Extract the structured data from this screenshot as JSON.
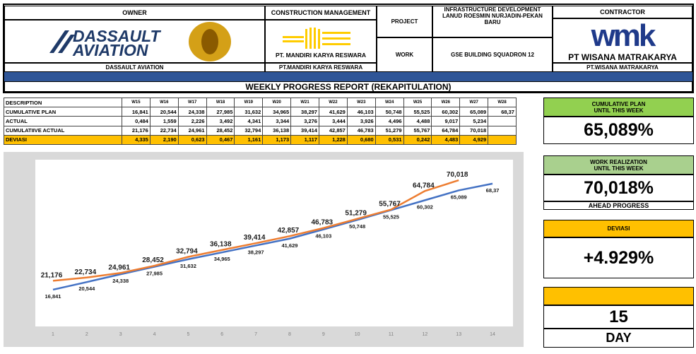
{
  "header": {
    "owner_label": "OWNER",
    "owner_logo_text": [
      "DASSAULT",
      "AVIATION"
    ],
    "owner_name": "DASSAULT AVIATION",
    "cm_label": "CONSTRUCTION MANAGEMENT",
    "cm_logo_text": "PT. MANDIRI KARYA RESWARA",
    "cm_name": "PT.MANDIRI KARYA RESWARA",
    "project_label": "PROJECT",
    "project_value": "INFRASTRUCTURE DEVELOPMENT LANUD ROESMIN NURJADIN-PEKAN BARU",
    "work_label": "WORK",
    "work_value": "GSE BUILDING SQUADRON 12",
    "contractor_label": "CONTRACTOR",
    "contractor_logo": "wmk",
    "contractor_logo_text": "PT WISANA MATRAKARYA",
    "contractor_name": "PT.WISANA MATRAKARYA",
    "report_title": "WEEKLY PROGRESS REPORT (REKAPITULATION)"
  },
  "table": {
    "header": [
      "DESCRIPTION",
      "W15",
      "W16",
      "W17",
      "W18",
      "W19",
      "W20",
      "W21",
      "W22",
      "W23",
      "W24",
      "W25",
      "W26",
      "W27",
      "W28"
    ],
    "rows": [
      [
        "CUMULATIVE PLAN",
        "16,841",
        "20,544",
        "24,338",
        "27,985",
        "31,632",
        "34,965",
        "38,297",
        "41,629",
        "46,103",
        "50,748",
        "55,525",
        "60,302",
        "65,089",
        "68,37"
      ],
      [
        "ACTUAL",
        "0,484",
        "1,559",
        "2,226",
        "3,492",
        "4,341",
        "3,344",
        "3,276",
        "3,444",
        "3,926",
        "4,496",
        "4,488",
        "9,017",
        "5,234"
      ],
      [
        "CUMULATIIVE ACTUAL",
        "21,176",
        "22,734",
        "24,961",
        "28,452",
        "32,794",
        "36,138",
        "39,414",
        "42,857",
        "46,783",
        "51,279",
        "55,767",
        "64,784",
        "70,018"
      ],
      [
        "DEVIASI",
        "4,335",
        "2,190",
        "0,623",
        "0,467",
        "1,161",
        "1,173",
        "1,117",
        "1,228",
        "0,680",
        "0,531",
        "0,242",
        "4,483",
        "4,929"
      ]
    ]
  },
  "chart_data": {
    "type": "line",
    "categories": [
      "1",
      "2",
      "3",
      "4",
      "5",
      "6",
      "7",
      "8",
      "9",
      "10",
      "11",
      "12",
      "13",
      "14"
    ],
    "ylim": [
      0,
      80
    ],
    "series": [
      {
        "name": "CUMULATIVE PLAN",
        "color": "#4472c4",
        "values": [
          16.841,
          20.544,
          24.338,
          27.985,
          31.632,
          34.965,
          38.297,
          41.629,
          46.103,
          50.748,
          55.525,
          60.302,
          65.089,
          68.37
        ],
        "value_labels": [
          "16,841",
          "20,544",
          "24,338",
          "27,985",
          "31,632",
          "34,965",
          "38,297",
          "41,629",
          "46,103",
          "50,748",
          "55,525",
          "60,302",
          "65,089",
          "68,37"
        ]
      },
      {
        "name": "CUMULATIIVE ACTUAL",
        "color": "#ed7d31",
        "values": [
          21.176,
          22.734,
          24.961,
          28.452,
          32.794,
          36.138,
          39.414,
          42.857,
          46.783,
          51.279,
          55.767,
          64.784,
          70.018,
          null
        ],
        "value_labels": [
          "21,176",
          "22,734",
          "24,961",
          "28,452",
          "32,794",
          "36,138",
          "39,414",
          "42,857",
          "46,783",
          "51,279",
          "55,767",
          "64,784",
          "70,018",
          null
        ]
      }
    ]
  },
  "summary": {
    "plan_label": [
      "CUMULATIVE PLAN",
      "UNTIL THIS WEEK"
    ],
    "plan_value": "65,089%",
    "real_label": [
      "WORK REALIZATION",
      "UNTIL THIS WEEK"
    ],
    "real_value": "70,018%",
    "real_note": "AHEAD PROGRESS",
    "dev_label": "DEVIASI",
    "dev_value": "+4.929%",
    "days_value": "15",
    "days_unit": "DAY"
  }
}
